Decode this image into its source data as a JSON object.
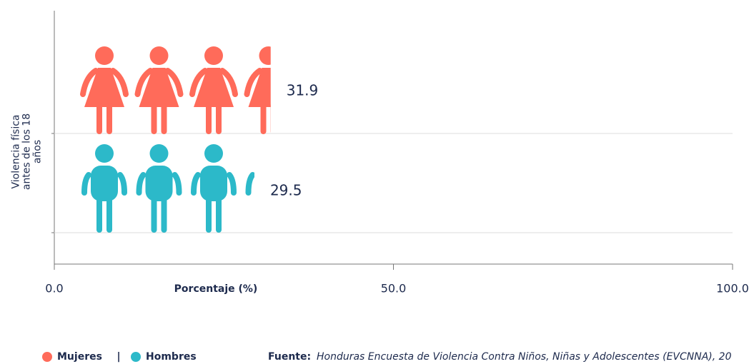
{
  "chart_data": {
    "type": "pictograph_bar",
    "categories": [
      "Violencia física antes de los 18 años"
    ],
    "series": [
      {
        "name": "Mujeres",
        "color": "#ff6b5a",
        "values": [
          31.9
        ]
      },
      {
        "name": "Hombres",
        "color": "#2cb9c9",
        "values": [
          29.5
        ]
      }
    ],
    "xlabel": "Porcentaje (%)",
    "xlim": [
      0,
      100
    ],
    "xticks": [
      {
        "value": 0,
        "label": "0.0"
      },
      {
        "value": 50,
        "label": "50.0"
      },
      {
        "value": 100,
        "label": "100.0"
      }
    ],
    "source_label": "Fuente:",
    "source": "Honduras Encuesta de Violencia Contra Niños, Niñas y Adolescentes (EVCNNA), 20",
    "legend_separator": "|"
  }
}
